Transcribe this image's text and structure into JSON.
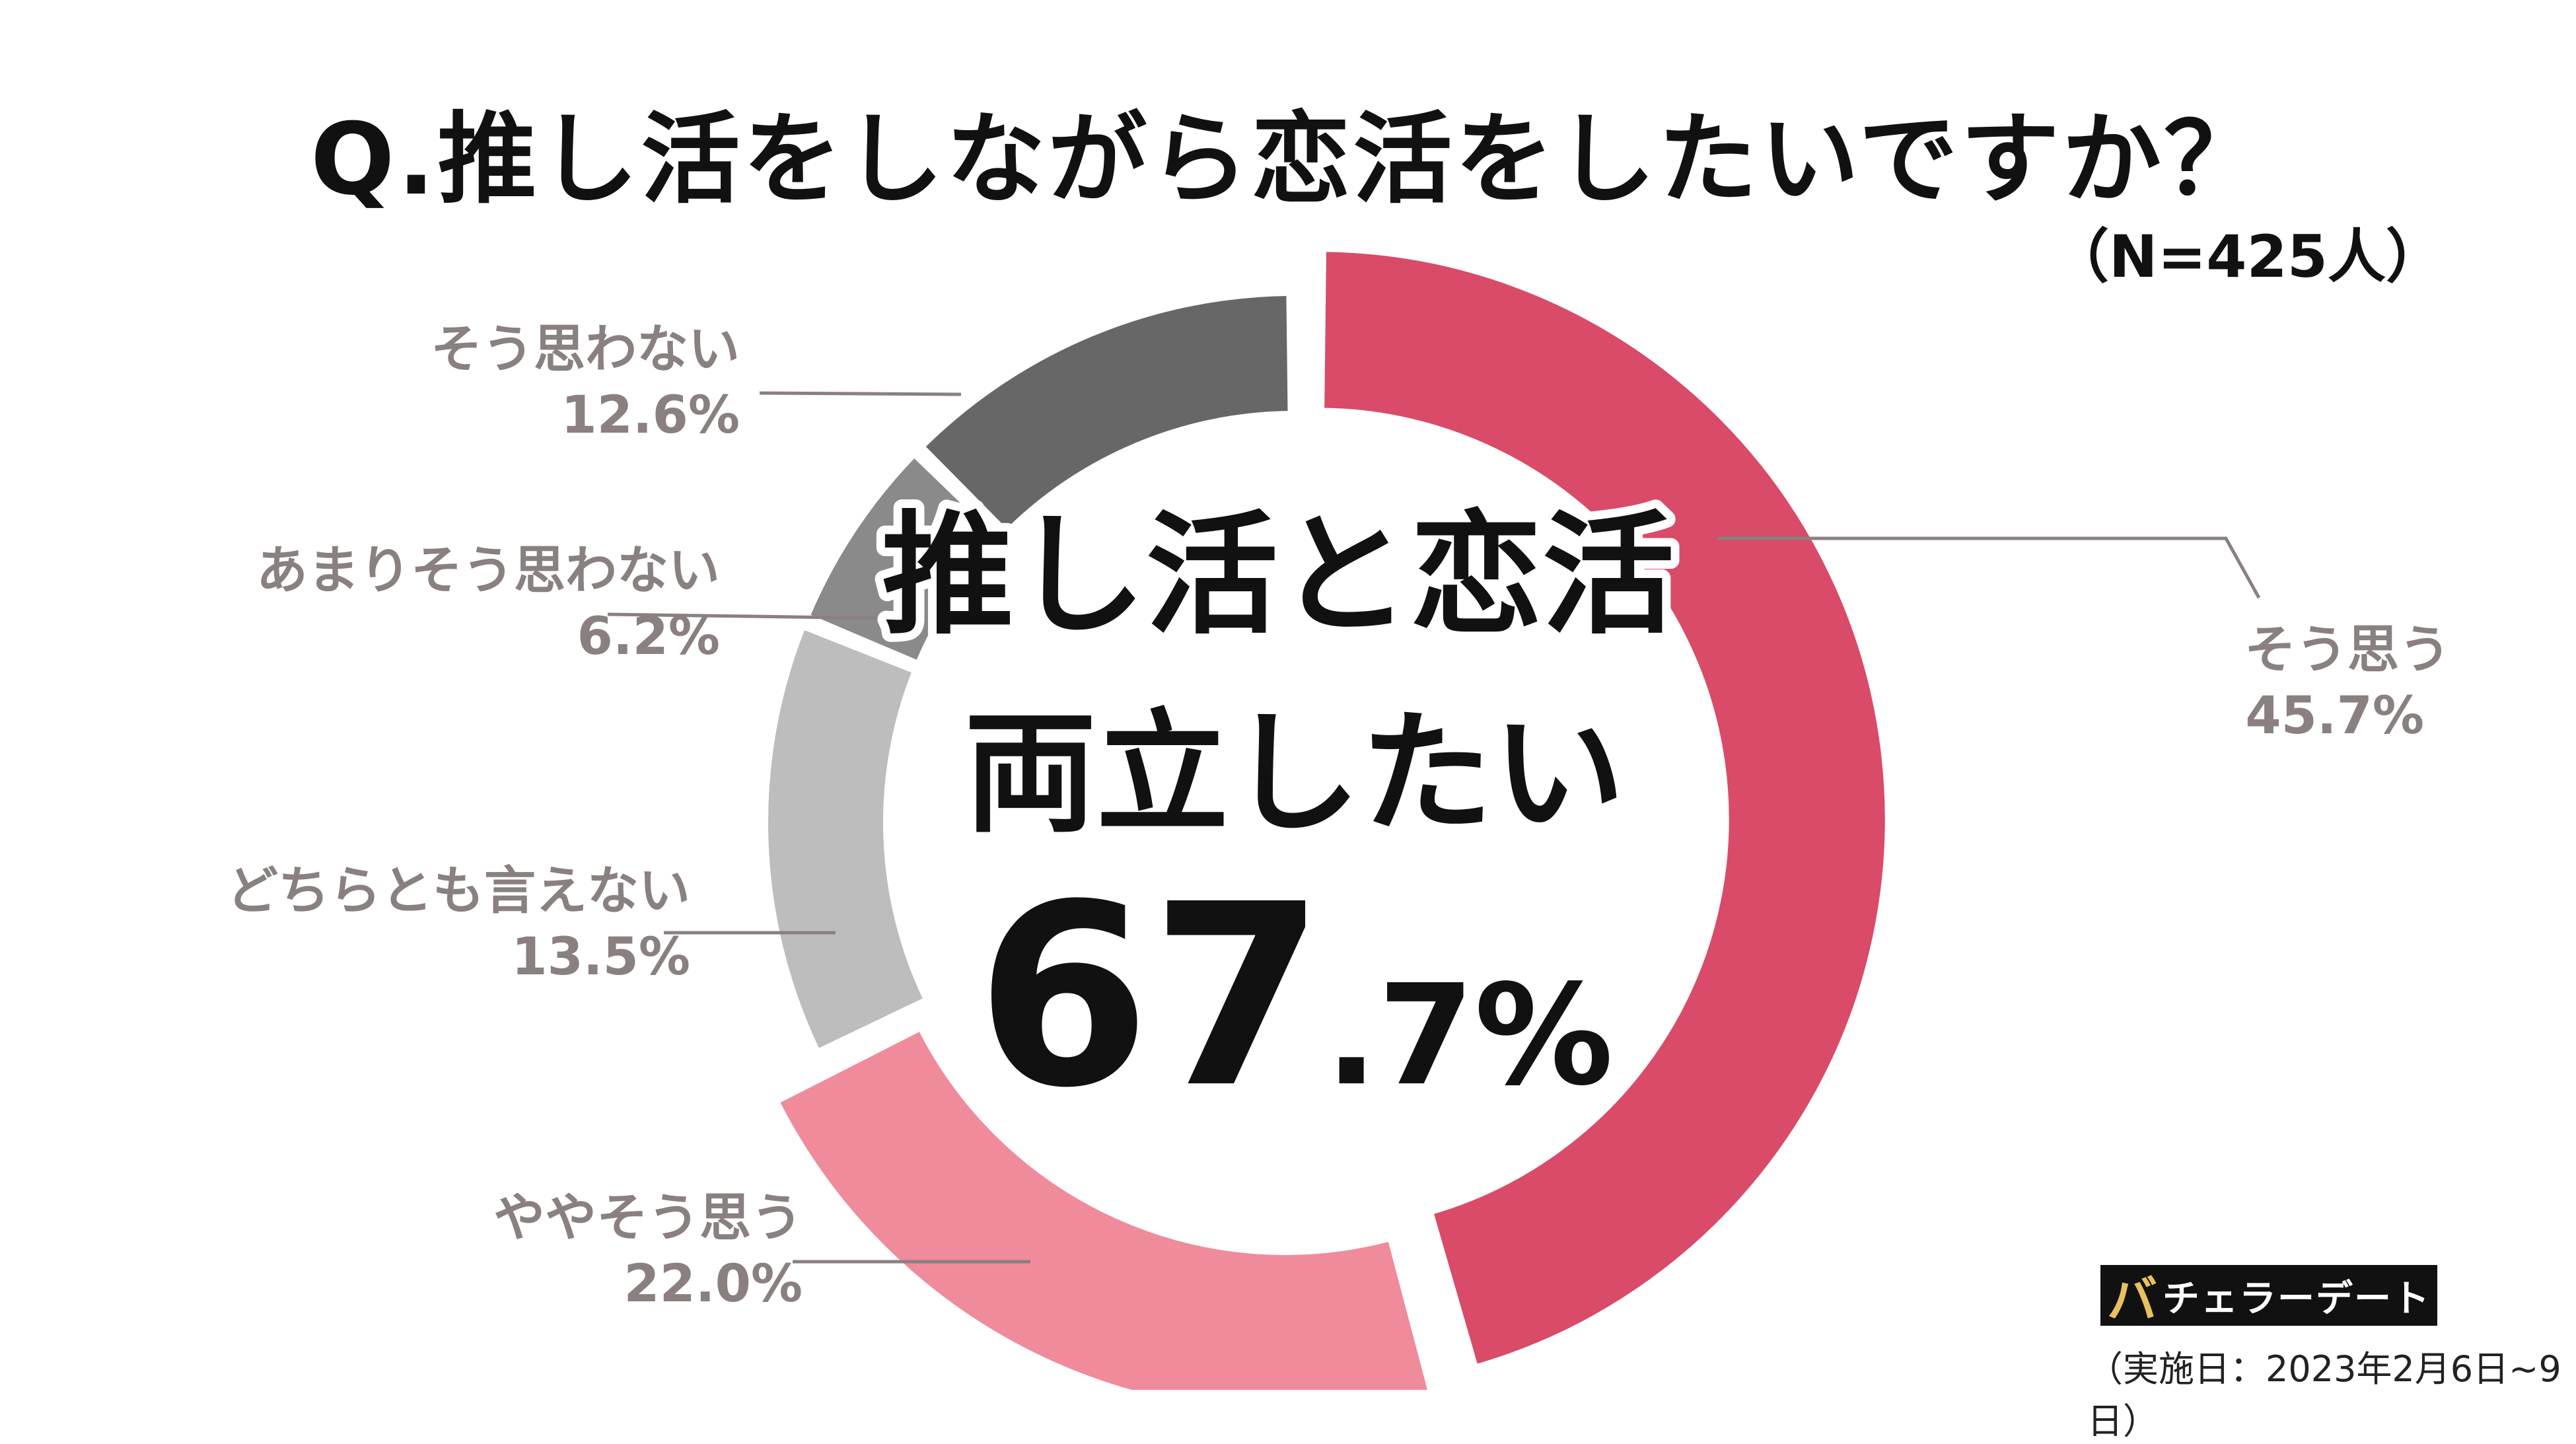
{
  "title": "Q.推し活をしながら恋活をしたいですか？",
  "sample": "（N=425人）",
  "center": {
    "line1": "推し活と恋活",
    "line2": "両立したい",
    "big": "67",
    "small": ".7%"
  },
  "chart_data": {
    "type": "pie",
    "variant": "donut",
    "categories": [
      "そう思う",
      "ややそう思う",
      "どちらとも言えない",
      "あまりそう思わない",
      "そう思わない"
    ],
    "values": [
      45.7,
      22.0,
      13.5,
      6.2,
      12.6
    ],
    "value_labels": [
      "45.7%",
      "22.0%",
      "13.5%",
      "6.2%",
      "12.6%"
    ],
    "colors": [
      "#d94b68",
      "#ef8b9b",
      "#bdbdbd",
      "#8a8a8a",
      "#676767"
    ],
    "exploded_slices": [
      "そう思う",
      "ややそう思う"
    ]
  },
  "brand": {
    "mark": "バ",
    "name": "チェラーデート"
  },
  "survey_date": "（実施日：2023年2月6日~9日）"
}
